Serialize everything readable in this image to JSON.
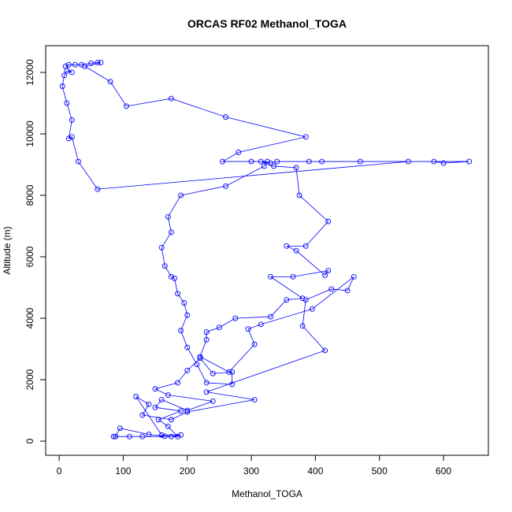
{
  "chart_data": {
    "type": "line",
    "title": "ORCAS RF02 Methanol_TOGA",
    "x_label": "Methanol_TOGA",
    "y_label": "Altitude (m)",
    "xlim": [
      -21,
      670
    ],
    "ylim": [
      -460,
      12870
    ],
    "xticks": [
      0,
      100,
      200,
      300,
      400,
      500,
      600
    ],
    "yticks": [
      0,
      2000,
      4000,
      6000,
      8000,
      10000,
      12000
    ],
    "x": [
      88,
      95,
      140,
      165,
      185,
      170,
      155,
      190,
      150,
      160,
      200,
      240,
      170,
      150,
      185,
      200,
      220,
      240,
      270,
      270,
      230,
      215,
      200,
      190,
      200,
      195,
      185,
      180,
      175,
      165,
      160,
      175,
      170,
      190,
      260,
      320,
      325,
      300,
      255,
      280,
      385,
      260,
      175,
      105,
      80,
      40,
      65,
      60,
      50,
      35,
      25,
      15,
      10,
      20,
      12,
      8,
      5,
      12,
      20,
      15,
      20,
      30,
      60,
      545,
      640,
      600,
      585,
      470,
      410,
      390,
      340,
      330,
      315,
      335,
      370,
      375,
      420,
      385,
      355,
      370,
      415,
      420,
      365,
      330,
      380,
      355,
      330,
      275,
      250,
      230,
      230,
      220,
      265,
      305,
      295,
      315,
      395,
      460,
      450,
      425,
      385,
      380,
      415,
      230,
      305,
      200,
      175,
      130,
      140,
      120,
      160,
      190,
      175,
      130,
      110,
      85
    ],
    "series": [
      {
        "name": "Methanol_TOGA",
        "color": "#0000ff",
        "values": [
          150,
          420,
          220,
          160,
          150,
          480,
          700,
          980,
          1100,
          1350,
          1000,
          1300,
          1500,
          1700,
          1900,
          2300,
          2700,
          2200,
          2250,
          1850,
          1900,
          2500,
          3050,
          3600,
          4100,
          4500,
          4800,
          5300,
          5350,
          5700,
          6300,
          6800,
          7300,
          8000,
          8300,
          8950,
          9100,
          9100,
          9100,
          9400,
          9900,
          10550,
          11150,
          10900,
          11700,
          12200,
          12320,
          12320,
          12300,
          12250,
          12250,
          12250,
          12200,
          12000,
          12050,
          11900,
          11550,
          11000,
          10450,
          9850,
          9900,
          9100,
          8200,
          9100,
          9100,
          9050,
          9100,
          9100,
          9100,
          9100,
          9100,
          9050,
          9100,
          8950,
          8900,
          8000,
          7150,
          6350,
          6350,
          6200,
          5400,
          5550,
          5350,
          5350,
          4650,
          4600,
          4050,
          4000,
          3700,
          3550,
          3300,
          2750,
          2250,
          3150,
          3650,
          3800,
          4300,
          5350,
          4900,
          4950,
          4600,
          3750,
          2950,
          1600,
          1350,
          950,
          700,
          850,
          1200,
          1450,
          200,
          200,
          150,
          150,
          150,
          150
        ]
      }
    ]
  }
}
